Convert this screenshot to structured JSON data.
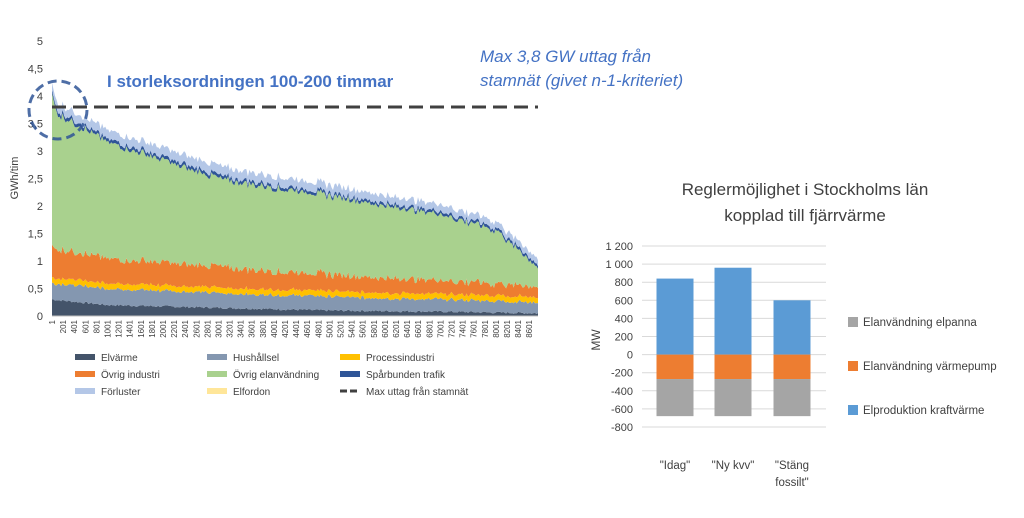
{
  "chart_data": [
    {
      "type": "area",
      "xlabel": "",
      "ylabel": "GWh/tim",
      "ylim": [
        0,
        5
      ],
      "yticks": [
        "0",
        "0,5",
        "1",
        "1,5",
        "2",
        "2,5",
        "3",
        "3,5",
        "4",
        "4,5",
        "5"
      ],
      "x_ticks": [
        "1",
        "201",
        "401",
        "601",
        "801",
        "1001",
        "1201",
        "1401",
        "1601",
        "1801",
        "2001",
        "2201",
        "2401",
        "2601",
        "2801",
        "3001",
        "3201",
        "3401",
        "3601",
        "3801",
        "4001",
        "4201",
        "4401",
        "4601",
        "4801",
        "5001",
        "5201",
        "5401",
        "5601",
        "5801",
        "6001",
        "6201",
        "6401",
        "6601",
        "6801",
        "7001",
        "7201",
        "7401",
        "7601",
        "7801",
        "8001",
        "8201",
        "8401",
        "8601"
      ],
      "xlim": [
        1,
        8760
      ],
      "max_line": {
        "name": "Max uttag från stamnät",
        "value": 3.8
      },
      "annotations": {
        "box_text": "I storleksordningen 100-200 timmar",
        "max_text_line1": "Max 3,8 GW uttag från",
        "max_text_line2": "stamnät (givet n-1-kriteriet)"
      },
      "series": [
        {
          "name": "Elvärme",
          "color": "#44546a",
          "x": [
            1,
            1000,
            3000,
            5000,
            7000,
            8760
          ],
          "values": [
            0.3,
            0.2,
            0.15,
            0.1,
            0.08,
            0.05
          ]
        },
        {
          "name": "Hushållsel",
          "color": "#8497b0",
          "x": [
            1,
            1000,
            3000,
            5000,
            7000,
            8760
          ],
          "values": [
            0.3,
            0.3,
            0.27,
            0.25,
            0.22,
            0.2
          ]
        },
        {
          "name": "Processindustri",
          "color": "#ffc000",
          "x": [
            1,
            1000,
            3000,
            5000,
            7000,
            8760
          ],
          "values": [
            0.1,
            0.1,
            0.1,
            0.1,
            0.1,
            0.1
          ]
        },
        {
          "name": "Övrig industri",
          "color": "#ed7d31",
          "x": [
            1,
            1000,
            3000,
            5000,
            7000,
            8760
          ],
          "values": [
            0.55,
            0.45,
            0.38,
            0.3,
            0.25,
            0.2
          ]
        },
        {
          "name": "Övrig elanvändning",
          "color": "#a9d18e",
          "x": [
            1,
            100,
            500,
            1000,
            3000,
            5000,
            7000,
            8000,
            8760
          ],
          "values": [
            2.75,
            2.45,
            2.3,
            2.12,
            1.6,
            1.43,
            1.2,
            0.97,
            0.35
          ]
        },
        {
          "name": "Spårbunden trafik",
          "color": "#2f5597",
          "x": [
            1,
            1000,
            3000,
            5000,
            7000,
            8760
          ],
          "values": [
            0.06,
            0.06,
            0.06,
            0.05,
            0.05,
            0.05
          ]
        },
        {
          "name": "Förluster",
          "color": "#b4c7e7",
          "x": [
            1,
            1000,
            3000,
            5000,
            7000,
            8760
          ],
          "values": [
            0.14,
            0.16,
            0.17,
            0.15,
            0.13,
            0.11
          ]
        },
        {
          "name": "Elfordon",
          "color": "#ffe699",
          "x": [
            1,
            8760
          ],
          "values": [
            0,
            0
          ]
        }
      ],
      "legend_order": [
        "Elvärme",
        "Hushållsel",
        "Processindustri",
        "Övrig industri",
        "Övrig elanvändning",
        "Spårbunden trafik",
        "Förluster",
        "Elfordon",
        "Max uttag från stamnät"
      ]
    },
    {
      "type": "bar",
      "stacked": true,
      "title_line1": "Reglermöjlighet i Stockholms län",
      "title_line2": "kopplad till fjärrvärme",
      "ylabel": "MW",
      "ylim": [
        -800,
        1200
      ],
      "yticks": [
        "-800",
        "-600",
        "-400",
        "-200",
        "0",
        "200",
        "400",
        "600",
        "800",
        "1 000",
        "1 200"
      ],
      "categories": [
        {
          "line1": "\"Idag\"",
          "line2": ""
        },
        {
          "line1": "\"Ny kvv\"",
          "line2": ""
        },
        {
          "line1": "\"Stäng",
          "line2": "fossilt\""
        }
      ],
      "series": [
        {
          "name": "Elanvändning elpanna",
          "color": "#a5a5a5",
          "values": [
            -410,
            -410,
            -410
          ]
        },
        {
          "name": "Elanvändning värmepump",
          "color": "#ed7d31",
          "values": [
            -270,
            -270,
            -270
          ]
        },
        {
          "name": "Elproduktion kraftvärme",
          "color": "#5b9bd5",
          "values": [
            840,
            960,
            600
          ]
        }
      ]
    }
  ]
}
